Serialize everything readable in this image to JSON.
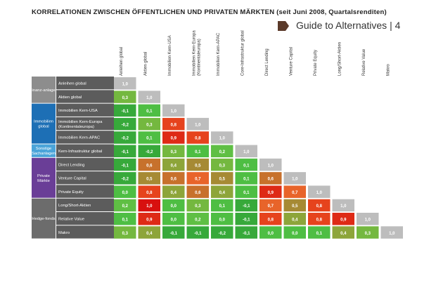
{
  "title": "KORRELATIONEN ZWISCHEN ÖFFENTLICHEN UND PRIVATEN MÄRKTEN (seit Juni 2008, Quartalsrenditen)",
  "header_badge": "Guide to Alternatives | 4",
  "colors": {
    "group_finanz": "#8d8d8d",
    "group_immobilien": "#1d6fb5",
    "group_sonstige": "#4aa4d9",
    "group_private": "#6a3e97",
    "group_hedge": "#6c6c6c",
    "row_label_bg": "#5c5c5c",
    "diagonal": "#bdbdbd",
    "badge": "#5b3a2a"
  },
  "chart_data": {
    "type": "heatmap",
    "title": "KORRELATIONEN ZWISCHEN ÖFFENTLICHEN UND PRIVATEN MÄRKTEN (seit Juni 2008, Quartalsrenditen)",
    "columns": [
      "Anleihen global",
      "Aktien global",
      "Immobilien Kern-USA",
      "Immobilien Kern-Europa (Kontinentaleuropa)",
      "Immobilien Kern-APAC",
      "Core-Infrastruktur global",
      "Direct Lending",
      "Venture Capital",
      "Private Equity",
      "Long/Short-Aktien",
      "Relative Value",
      "Makro"
    ],
    "groups": [
      {
        "label": "Finanz-anlagen",
        "color_key": "group_finanz",
        "rows": 2
      },
      {
        "label": "Immobilien global",
        "color_key": "group_immobilien",
        "rows": 3
      },
      {
        "label": "Sonstige Sachanlagen",
        "color_key": "group_sonstige",
        "rows": 1
      },
      {
        "label": "Private Märkte",
        "color_key": "group_private",
        "rows": 3
      },
      {
        "label": "Hedge-fonds",
        "color_key": "group_hedge",
        "rows": 3
      }
    ],
    "rows": [
      {
        "label": "Anleihen global",
        "values": [
          "1,0"
        ]
      },
      {
        "label": "Aktien global",
        "values": [
          "0,3",
          "1,0"
        ]
      },
      {
        "label": "Immobilien Kern-USA",
        "values": [
          "-0,1",
          "0,1",
          "1,0"
        ]
      },
      {
        "label": "Immobilien Kern-Europa (Kontinentaleuropa)",
        "values": [
          "-0,2",
          "0,3",
          "0,8",
          "1,0"
        ]
      },
      {
        "label": "Immobilien Kern-APAC",
        "values": [
          "-0,2",
          "0,1",
          "0,9",
          "0,8",
          "1,0"
        ]
      },
      {
        "label": "Kern-Infrastruktur global",
        "values": [
          "-0,1",
          "-0,2",
          "0,3",
          "0,1",
          "0,2",
          "1,0"
        ]
      },
      {
        "label": "Direct Lending",
        "values": [
          "-0,1",
          "0,6",
          "0,4",
          "0,5",
          "0,3",
          "0,1",
          "1,0"
        ]
      },
      {
        "label": "Venture Capital",
        "values": [
          "-0,2",
          "0,5",
          "0,6",
          "0,7",
          "0,5",
          "0,1",
          "0,6",
          "1,0"
        ]
      },
      {
        "label": "Private Equity",
        "values": [
          "0,0",
          "0,8",
          "0,4",
          "0,6",
          "0,4",
          "0,1",
          "0,9",
          "0,7",
          "1,0"
        ]
      },
      {
        "label": "Long/Short-Aktien",
        "values": [
          "0,2",
          "1,0",
          "0,0",
          "0,3",
          "0,1",
          "-0,1",
          "0,7",
          "0,5",
          "0,8",
          "1,0"
        ]
      },
      {
        "label": "Relative Value",
        "values": [
          "0,1",
          "0,9",
          "0,0",
          "0,2",
          "0,0",
          "-0,1",
          "0,8",
          "0,4",
          "0,8",
          "0,9",
          "1,0"
        ]
      },
      {
        "label": "Makro",
        "values": [
          "0,3",
          "0,4",
          "-0,1",
          "-0,1",
          "-0,2",
          "-0,1",
          "0,0",
          "0,0",
          "0,1",
          "0,4",
          "0,3",
          "1,0"
        ]
      }
    ]
  }
}
